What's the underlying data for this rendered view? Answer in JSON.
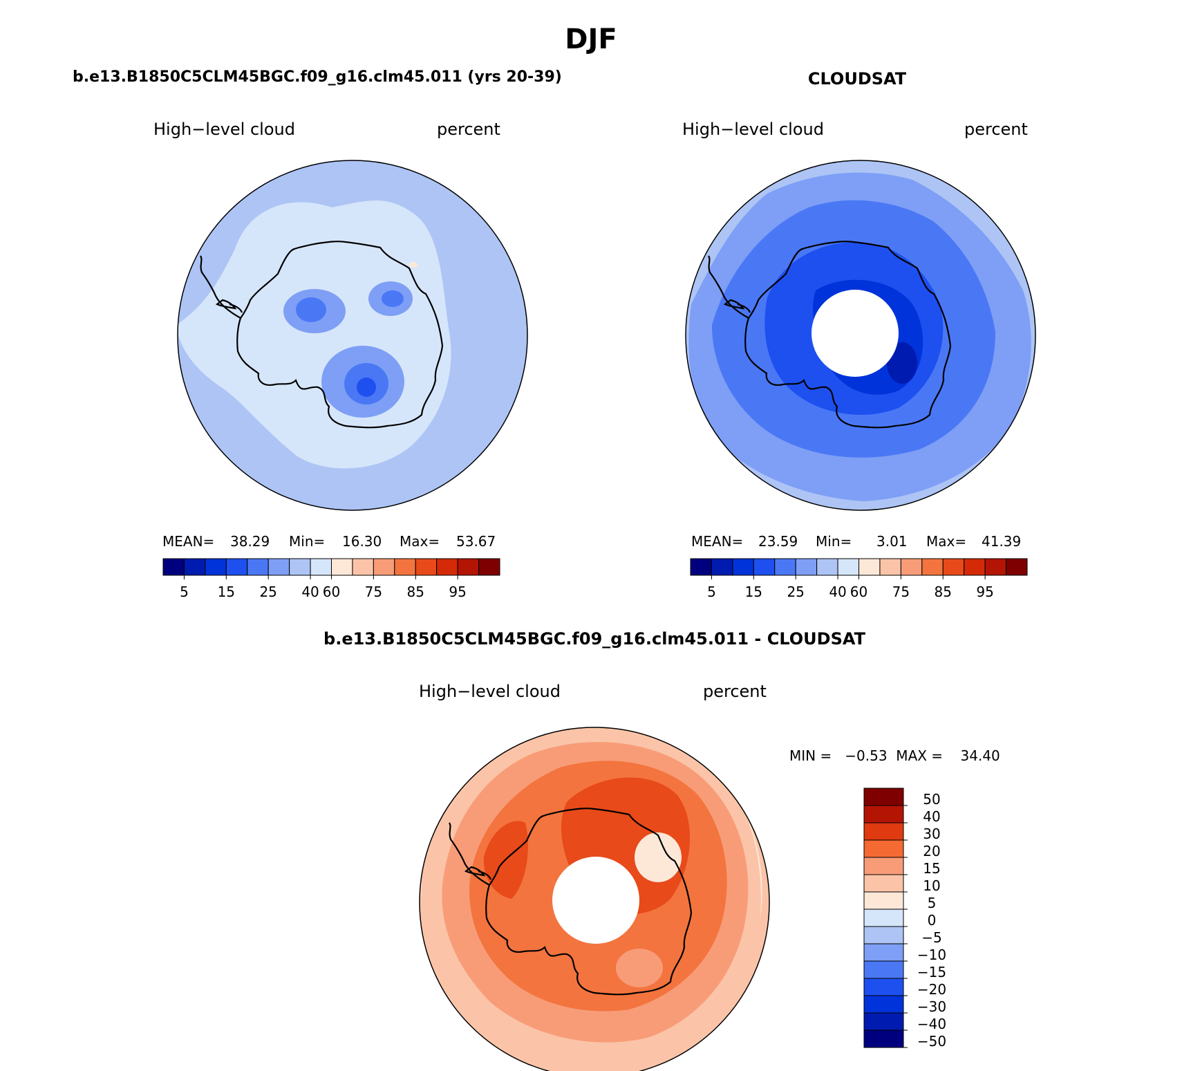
{
  "page": {
    "title": "DJF"
  },
  "panels": {
    "model": {
      "title": "b.e13.B1850C5CLM45BGC.f09_g16.clm45.011 (yrs 20-39)",
      "variable": "High−level cloud",
      "units": "percent",
      "stats": {
        "mean_label": "MEAN=",
        "mean": "38.29",
        "min_label": "Min=",
        "min": "16.30",
        "max_label": "Max=",
        "max": "53.67"
      }
    },
    "obs": {
      "title": "CLOUDSAT",
      "variable": "High−level cloud",
      "units": "percent",
      "stats": {
        "mean_label": "MEAN=",
        "mean": "23.59",
        "min_label": "Min=",
        "min": "3.01",
        "max_label": "Max=",
        "max": "41.39"
      }
    },
    "diff": {
      "title": "b.e13.B1850C5CLM45BGC.f09_g16.clm45.011 - CLOUDSAT",
      "variable": "High−level cloud",
      "units": "percent",
      "range_text": "MIN =   −0.53  MAX =    34.40"
    }
  },
  "colorbars": {
    "abs": {
      "colors": [
        "#00007f",
        "#001bb0",
        "#0033d9",
        "#1e50f0",
        "#4a78f5",
        "#7e9ff5",
        "#adc4f5",
        "#d6e6fa",
        "#fde8d8",
        "#fbc4a8",
        "#f89c78",
        "#f3743e",
        "#e84a1a",
        "#d42a08",
        "#b41404",
        "#7f0000"
      ],
      "labels": [
        "5",
        "15",
        "25",
        "40",
        "60",
        "75",
        "85",
        "95"
      ]
    },
    "diff": {
      "colors": [
        "#7f0000",
        "#b41404",
        "#e03a10",
        "#f46a32",
        "#f89c78",
        "#fbc4a8",
        "#fde8d8",
        "#d6e6fa",
        "#adc4f5",
        "#7e9ff5",
        "#4a78f5",
        "#1e50f0",
        "#0033d9",
        "#001bb0",
        "#00007f"
      ],
      "labels": [
        "50",
        "40",
        "30",
        "20",
        "15",
        "10",
        "5",
        "0",
        "−5",
        "−10",
        "−15",
        "−20",
        "−30",
        "−40",
        "−50"
      ]
    }
  },
  "map_colors": {
    "model": {
      "base": "#adc4f5",
      "light": "#d6e6fa",
      "mid": "#7e9ff5",
      "dark": "#4a78f5",
      "darker": "#1e50f0",
      "accent": "#fde8d8"
    },
    "obs": {
      "base": "#7e9ff5",
      "light": "#adc4f5",
      "mid": "#4a78f5",
      "dark": "#1e50f0",
      "darker": "#0033d9",
      "deepest": "#001bb0"
    },
    "diff": {
      "base": "#fbc4a8",
      "light": "#fde8d8",
      "mid": "#f89c78",
      "dark": "#f3743e",
      "darker": "#e84a1a"
    }
  }
}
